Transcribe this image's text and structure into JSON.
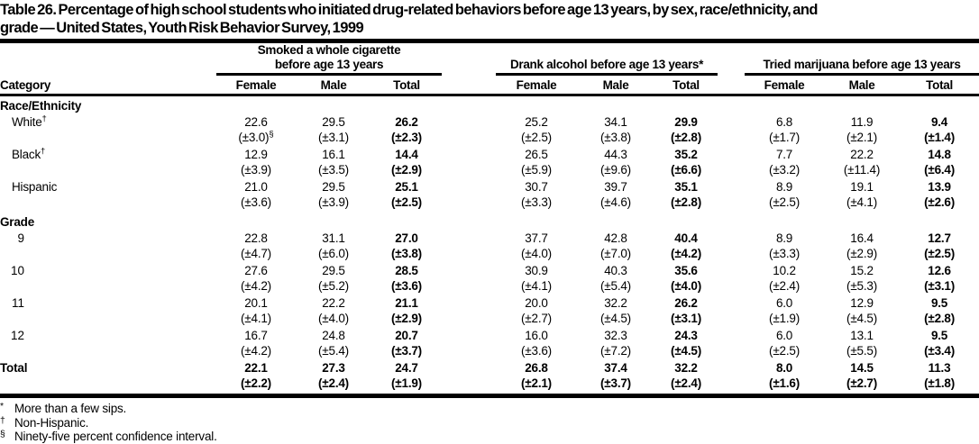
{
  "page": {
    "title_line1": "Table 26. Percentage of high school students who initiated drug-related behaviors before age 13 years, by sex, race/ethnicity, and",
    "title_line2": "grade — United States, Youth Risk Behavior Survey, 1999"
  },
  "header": {
    "category_label": "Category",
    "groups": [
      {
        "label": "Smoked a whole cigarette before age 13 years",
        "columns": [
          "Female",
          "Male",
          "Total"
        ]
      },
      {
        "label": "Drank alcohol before age 13 years*",
        "columns": [
          "Female",
          "Male",
          "Total"
        ]
      },
      {
        "label": "Tried marijuana before age 13 years",
        "columns": [
          "Female",
          "Male",
          "Total"
        ]
      }
    ]
  },
  "table": {
    "sections": [
      {
        "heading": "Race/Ethnicity",
        "rows": [
          {
            "label": "White",
            "label_sup": "†",
            "cells": [
              {
                "v": "22.6",
                "ci": "(±3.0)",
                "ci_sup": "§"
              },
              {
                "v": "29.5",
                "ci": "(±3.1)"
              },
              {
                "v": "26.2",
                "ci": "(±2.3)"
              },
              {
                "v": "25.2",
                "ci": "(±2.5)"
              },
              {
                "v": "34.1",
                "ci": "(±3.8)"
              },
              {
                "v": "29.9",
                "ci": "(±2.8)"
              },
              {
                "v": "6.8",
                "ci": "(±1.7)"
              },
              {
                "v": "11.9",
                "ci": "(±2.1)"
              },
              {
                "v": "9.4",
                "ci": "(±1.4)"
              }
            ]
          },
          {
            "label": "Black",
            "label_sup": "†",
            "cells": [
              {
                "v": "12.9",
                "ci": "(±3.9)"
              },
              {
                "v": "16.1",
                "ci": "(±3.5)"
              },
              {
                "v": "14.4",
                "ci": "(±2.9)"
              },
              {
                "v": "26.5",
                "ci": "(±5.9)"
              },
              {
                "v": "44.3",
                "ci": "(±9.6)"
              },
              {
                "v": "35.2",
                "ci": "(±6.6)"
              },
              {
                "v": "7.7",
                "ci": "(±3.2)"
              },
              {
                "v": "22.2",
                "ci": "(±11.4)"
              },
              {
                "v": "14.8",
                "ci": "(±6.4)"
              }
            ]
          },
          {
            "label": "Hispanic",
            "cells": [
              {
                "v": "21.0",
                "ci": "(±3.6)"
              },
              {
                "v": "29.5",
                "ci": "(±3.9)"
              },
              {
                "v": "25.1",
                "ci": "(±2.5)"
              },
              {
                "v": "30.7",
                "ci": "(±3.3)"
              },
              {
                "v": "39.7",
                "ci": "(±4.6)"
              },
              {
                "v": "35.1",
                "ci": "(±2.8)"
              },
              {
                "v": "8.9",
                "ci": "(±2.5)"
              },
              {
                "v": "19.1",
                "ci": "(±4.1)"
              },
              {
                "v": "13.9",
                "ci": "(±2.6)"
              }
            ]
          }
        ]
      },
      {
        "heading": "Grade",
        "rows": [
          {
            "label": "9",
            "cells": [
              {
                "v": "22.8",
                "ci": "(±4.7)"
              },
              {
                "v": "31.1",
                "ci": "(±6.0)"
              },
              {
                "v": "27.0",
                "ci": "(±3.8)"
              },
              {
                "v": "37.7",
                "ci": "(±4.0)"
              },
              {
                "v": "42.8",
                "ci": "(±7.0)"
              },
              {
                "v": "40.4",
                "ci": "(±4.2)"
              },
              {
                "v": "8.9",
                "ci": "(±3.3)"
              },
              {
                "v": "16.4",
                "ci": "(±2.9)"
              },
              {
                "v": "12.7",
                "ci": "(±2.5)"
              }
            ]
          },
          {
            "label": "10",
            "cells": [
              {
                "v": "27.6",
                "ci": "(±4.2)"
              },
              {
                "v": "29.5",
                "ci": "(±5.2)"
              },
              {
                "v": "28.5",
                "ci": "(±3.6)"
              },
              {
                "v": "30.9",
                "ci": "(±4.1)"
              },
              {
                "v": "40.3",
                "ci": "(±5.4)"
              },
              {
                "v": "35.6",
                "ci": "(±4.0)"
              },
              {
                "v": "10.2",
                "ci": "(±2.4)"
              },
              {
                "v": "15.2",
                "ci": "(±5.3)"
              },
              {
                "v": "12.6",
                "ci": "(±3.1)"
              }
            ]
          },
          {
            "label": "11",
            "cells": [
              {
                "v": "20.1",
                "ci": "(±4.1)"
              },
              {
                "v": "22.2",
                "ci": "(±4.0)"
              },
              {
                "v": "21.1",
                "ci": "(±2.9)"
              },
              {
                "v": "20.0",
                "ci": "(±2.7)"
              },
              {
                "v": "32.2",
                "ci": "(±4.5)"
              },
              {
                "v": "26.2",
                "ci": "(±3.1)"
              },
              {
                "v": "6.0",
                "ci": "(±1.9)"
              },
              {
                "v": "12.9",
                "ci": "(±4.5)"
              },
              {
                "v": "9.5",
                "ci": "(±2.8)"
              }
            ]
          },
          {
            "label": "12",
            "cells": [
              {
                "v": "16.7",
                "ci": "(±4.2)"
              },
              {
                "v": "24.8",
                "ci": "(±5.4)"
              },
              {
                "v": "20.7",
                "ci": "(±3.7)"
              },
              {
                "v": "16.0",
                "ci": "(±3.6)"
              },
              {
                "v": "32.3",
                "ci": "(±7.2)"
              },
              {
                "v": "24.3",
                "ci": "(±4.5)"
              },
              {
                "v": "6.0",
                "ci": "(±2.5)"
              },
              {
                "v": "13.1",
                "ci": "(±5.5)"
              },
              {
                "v": "9.5",
                "ci": "(±3.4)"
              }
            ]
          }
        ]
      }
    ],
    "total_row": {
      "label": "Total",
      "cells": [
        {
          "v": "22.1",
          "ci": "(±2.2)"
        },
        {
          "v": "27.3",
          "ci": "(±2.4)"
        },
        {
          "v": "24.7",
          "ci": "(±1.9)"
        },
        {
          "v": "26.8",
          "ci": "(±2.1)"
        },
        {
          "v": "37.4",
          "ci": "(±3.7)"
        },
        {
          "v": "32.2",
          "ci": "(±2.4)"
        },
        {
          "v": "8.0",
          "ci": "(±1.6)"
        },
        {
          "v": "14.5",
          "ci": "(±2.7)"
        },
        {
          "v": "11.3",
          "ci": "(±1.8)"
        }
      ]
    }
  },
  "footnotes": [
    {
      "marker": "*",
      "text": "More than a few sips."
    },
    {
      "marker": "†",
      "text": "Non-Hispanic."
    },
    {
      "marker": "§",
      "text": "Ninety-five percent confidence interval."
    }
  ],
  "colors": {
    "text": "#000000",
    "background": "#ffffff",
    "rule": "#000000"
  }
}
